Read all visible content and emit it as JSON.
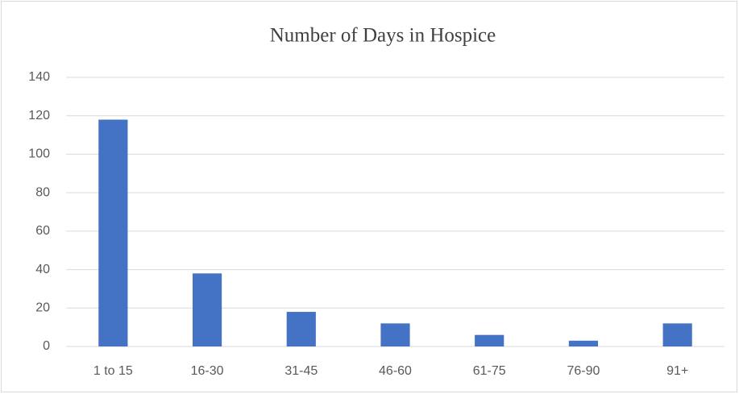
{
  "chart_data": {
    "type": "bar",
    "title": "Number of Days in Hospice",
    "categories": [
      "1 to 15",
      "16-30",
      "31-45",
      "46-60",
      "61-75",
      "76-90",
      "91+"
    ],
    "values": [
      118,
      38,
      18,
      12,
      6,
      3,
      12
    ],
    "color": "#4472c4",
    "ylim": [
      0,
      140
    ],
    "yticks": [
      0,
      20,
      40,
      60,
      80,
      100,
      120,
      140
    ],
    "grid": true
  }
}
